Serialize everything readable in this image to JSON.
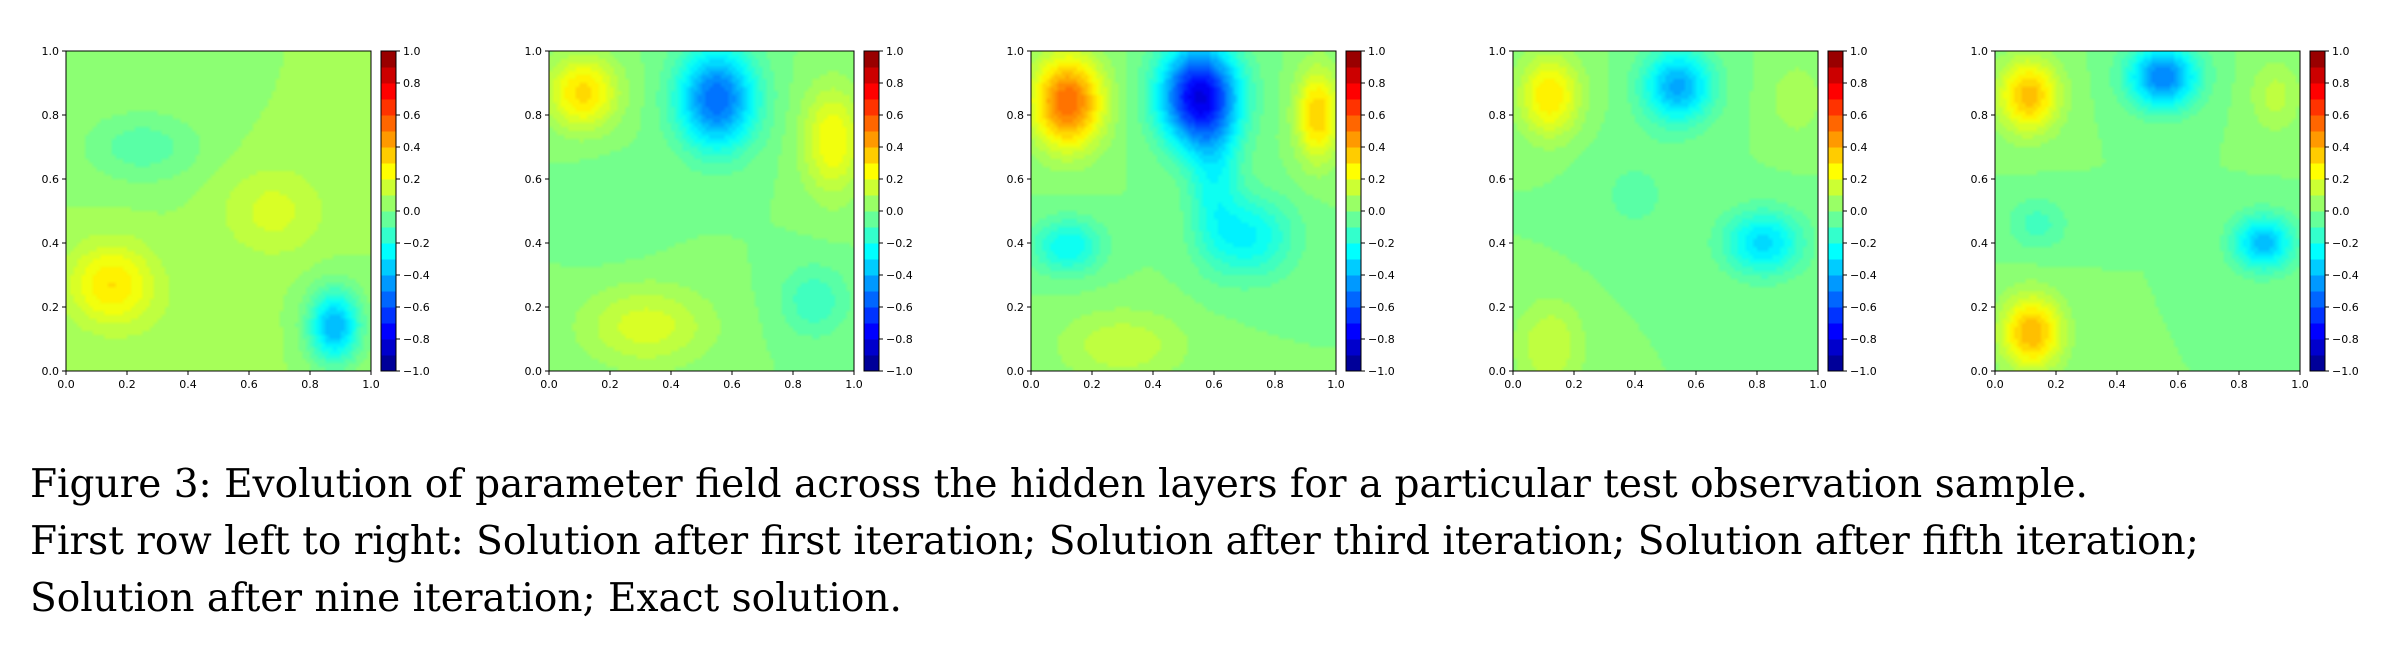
{
  "figure": {
    "panel_count": 5,
    "axis": {
      "x_ticks": [
        "0.0",
        "0.2",
        "0.4",
        "0.6",
        "0.8",
        "1.0"
      ],
      "y_ticks": [
        "0.0",
        "0.2",
        "0.4",
        "0.6",
        "0.8",
        "1.0"
      ]
    },
    "colorbar": {
      "colormap": "jet",
      "range": [
        -1.0,
        1.0
      ],
      "tick_labels": [
        "1.0",
        "0.8",
        "0.6",
        "0.4",
        "0.2",
        "0.0",
        "−0.2",
        "−0.4",
        "−0.6",
        "−0.8",
        "−1.0"
      ]
    }
  },
  "chart_data": [
    {
      "type": "heatmap",
      "xlim": [
        0,
        1
      ],
      "ylim": [
        0,
        1
      ],
      "zlim": [
        -1,
        1
      ],
      "base_value": 0.05,
      "features": [
        {
          "x": 0.15,
          "y": 0.27,
          "sx": 0.1,
          "sy": 0.09,
          "amp": 0.25
        },
        {
          "x": 0.68,
          "y": 0.5,
          "sx": 0.12,
          "sy": 0.1,
          "amp": 0.12
        },
        {
          "x": 0.88,
          "y": 0.14,
          "sx": 0.06,
          "sy": 0.08,
          "amp": -0.45
        },
        {
          "x": 0.25,
          "y": 0.7,
          "sx": 0.14,
          "sy": 0.08,
          "amp": -0.13
        },
        {
          "x": 0.45,
          "y": 0.1,
          "sx": 0.15,
          "sy": 0.1,
          "amp": 0.03
        }
      ]
    },
    {
      "type": "heatmap",
      "xlim": [
        0,
        1
      ],
      "ylim": [
        0,
        1
      ],
      "zlim": [
        -1,
        1
      ],
      "base_value": 0.0,
      "features": [
        {
          "x": 0.11,
          "y": 0.87,
          "sx": 0.08,
          "sy": 0.08,
          "amp": 0.32
        },
        {
          "x": 0.55,
          "y": 0.85,
          "sx": 0.09,
          "sy": 0.11,
          "amp": -0.55
        },
        {
          "x": 0.93,
          "y": 0.72,
          "sx": 0.07,
          "sy": 0.12,
          "amp": 0.25
        },
        {
          "x": 0.32,
          "y": 0.14,
          "sx": 0.15,
          "sy": 0.09,
          "amp": 0.18
        },
        {
          "x": 0.87,
          "y": 0.22,
          "sx": 0.08,
          "sy": 0.08,
          "amp": -0.14
        },
        {
          "x": 0.2,
          "y": 0.5,
          "sx": 0.1,
          "sy": 0.1,
          "amp": -0.05
        }
      ]
    },
    {
      "type": "heatmap",
      "xlim": [
        0,
        1
      ],
      "ylim": [
        0,
        1
      ],
      "zlim": [
        -1,
        1
      ],
      "base_value": 0.0,
      "features": [
        {
          "x": 0.12,
          "y": 0.84,
          "sx": 0.08,
          "sy": 0.1,
          "amp": 0.55
        },
        {
          "x": 0.55,
          "y": 0.86,
          "sx": 0.09,
          "sy": 0.11,
          "amp": -0.78
        },
        {
          "x": 0.94,
          "y": 0.8,
          "sx": 0.05,
          "sy": 0.1,
          "amp": 0.35
        },
        {
          "x": 0.12,
          "y": 0.39,
          "sx": 0.08,
          "sy": 0.06,
          "amp": -0.25
        },
        {
          "x": 0.72,
          "y": 0.42,
          "sx": 0.1,
          "sy": 0.09,
          "amp": -0.25
        },
        {
          "x": 0.6,
          "y": 0.6,
          "sx": 0.06,
          "sy": 0.15,
          "amp": -0.2
        },
        {
          "x": 0.3,
          "y": 0.08,
          "sx": 0.15,
          "sy": 0.08,
          "amp": 0.14
        }
      ]
    },
    {
      "type": "heatmap",
      "xlim": [
        0,
        1
      ],
      "ylim": [
        0,
        1
      ],
      "zlim": [
        -1,
        1
      ],
      "base_value": 0.0,
      "features": [
        {
          "x": 0.12,
          "y": 0.86,
          "sx": 0.07,
          "sy": 0.09,
          "amp": 0.3
        },
        {
          "x": 0.54,
          "y": 0.89,
          "sx": 0.08,
          "sy": 0.08,
          "amp": -0.42
        },
        {
          "x": 0.82,
          "y": 0.4,
          "sx": 0.09,
          "sy": 0.07,
          "amp": -0.32
        },
        {
          "x": 0.12,
          "y": 0.08,
          "sx": 0.08,
          "sy": 0.1,
          "amp": 0.15
        },
        {
          "x": 0.93,
          "y": 0.85,
          "sx": 0.06,
          "sy": 0.08,
          "amp": 0.1
        },
        {
          "x": 0.4,
          "y": 0.55,
          "sx": 0.12,
          "sy": 0.12,
          "amp": -0.06
        }
      ]
    },
    {
      "type": "heatmap",
      "xlim": [
        0,
        1
      ],
      "ylim": [
        0,
        1
      ],
      "zlim": [
        -1,
        1
      ],
      "base_value": 0.0,
      "features": [
        {
          "x": 0.11,
          "y": 0.86,
          "sx": 0.07,
          "sy": 0.08,
          "amp": 0.38
        },
        {
          "x": 0.55,
          "y": 0.92,
          "sx": 0.08,
          "sy": 0.07,
          "amp": -0.5
        },
        {
          "x": 0.88,
          "y": 0.4,
          "sx": 0.07,
          "sy": 0.06,
          "amp": -0.38
        },
        {
          "x": 0.12,
          "y": 0.12,
          "sx": 0.07,
          "sy": 0.08,
          "amp": 0.4
        },
        {
          "x": 0.14,
          "y": 0.46,
          "sx": 0.07,
          "sy": 0.06,
          "amp": -0.12
        },
        {
          "x": 0.92,
          "y": 0.86,
          "sx": 0.06,
          "sy": 0.08,
          "amp": 0.12
        }
      ]
    }
  ],
  "caption": {
    "line1": "Figure 3: Evolution of parameter field across the hidden layers for a particular test observation sample.",
    "line2": "First row left to right:  Solution after first iteration; Solution after third iteration; Solution after fifth iteration;",
    "line3": "Solution after nine iteration; Exact solution."
  }
}
